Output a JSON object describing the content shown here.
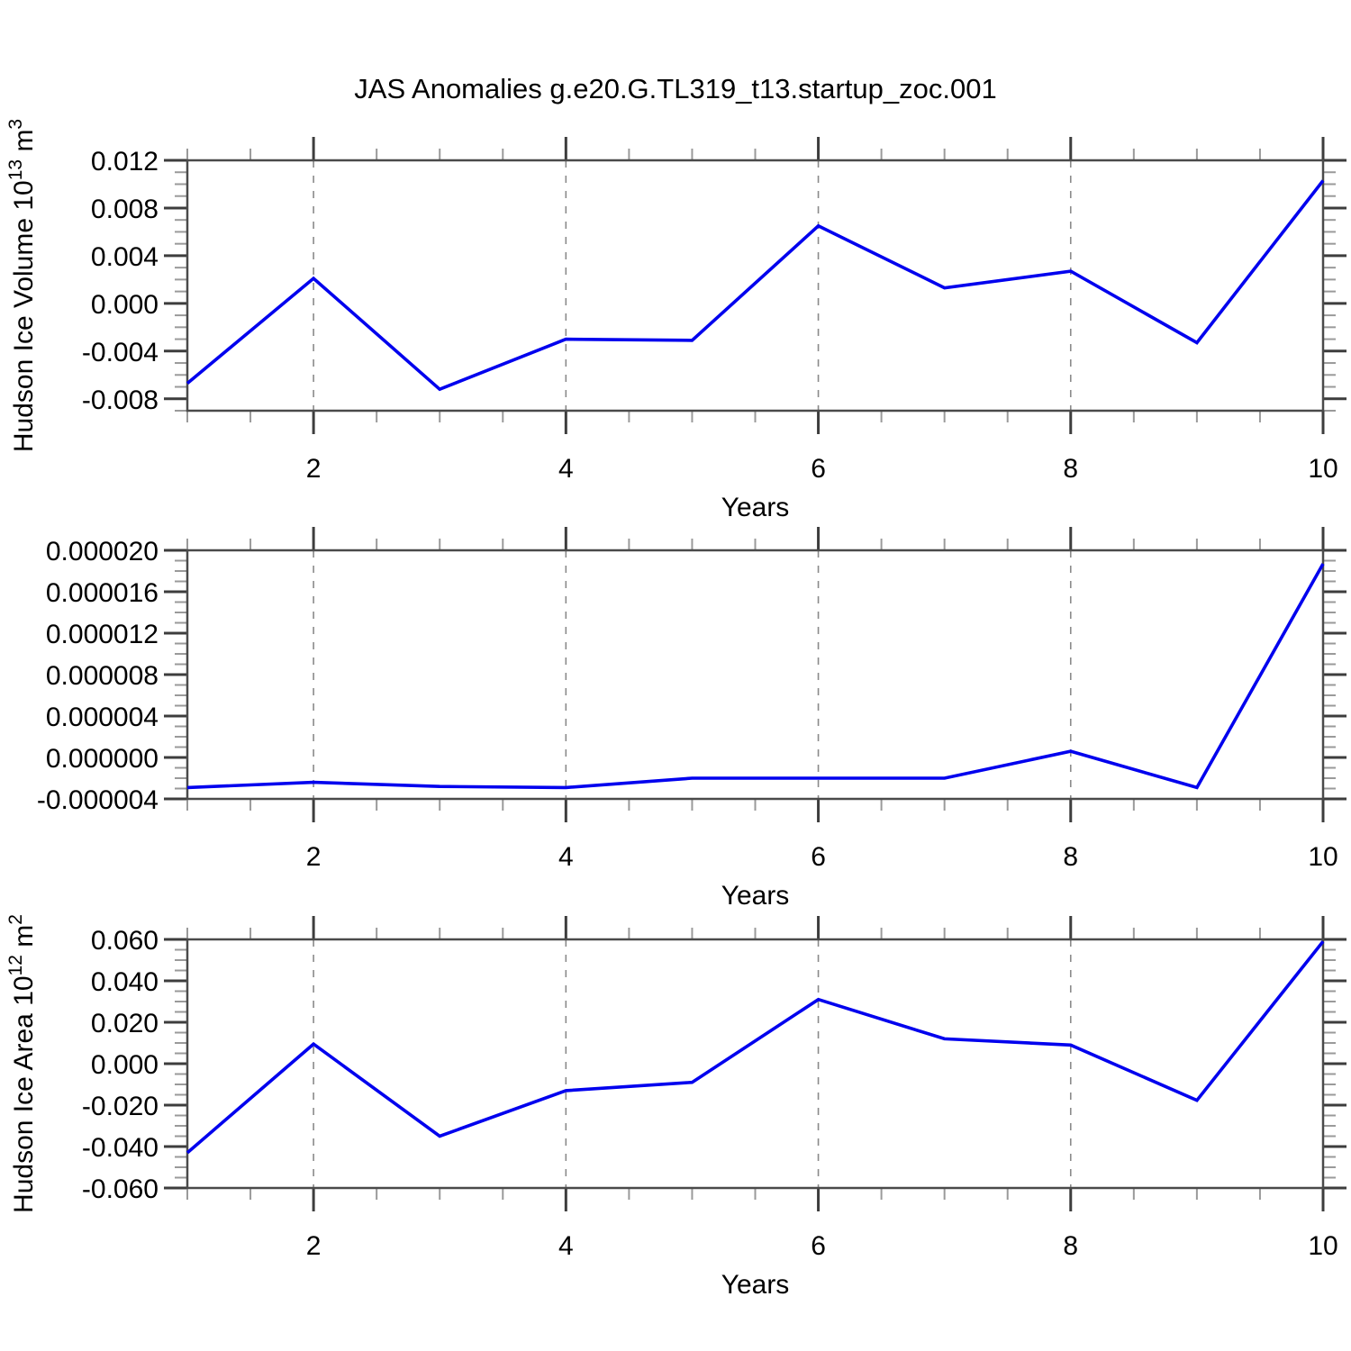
{
  "figure": {
    "title": "JAS Anomalies g.e20.G.TL319_t13.startup_zoc.001"
  },
  "style": {
    "line_color": "#0000ee",
    "frame_color": "#4a4a4a",
    "grid_color": "#8a8a8a",
    "tick_major_color": "#3d3d3d",
    "tick_minor_color": "#9a9a9a",
    "text_color": "#000000"
  },
  "chart_data": [
    {
      "type": "line",
      "panel": 1,
      "title": "JAS Anomalies g.e20.G.TL319_t13.startup_zoc.001",
      "xlabel": "Years",
      "ylabel": {
        "prefix": "Hudson Ice Volume 10",
        "exponent": "13",
        "unit": "m",
        "unit_exponent": "3"
      },
      "x": [
        1,
        2,
        3,
        4,
        5,
        6,
        7,
        8,
        9,
        10
      ],
      "values": [
        -0.0067,
        0.0021,
        -0.0072,
        -0.003,
        -0.0031,
        0.0065,
        0.0013,
        0.0027,
        -0.0033,
        0.0103
      ],
      "xlim": [
        1,
        10
      ],
      "ylim": [
        -0.009,
        0.012
      ],
      "yticks": [
        {
          "value": 0.012,
          "label": "0.012"
        },
        {
          "value": 0.008,
          "label": "0.008"
        },
        {
          "value": 0.004,
          "label": "0.004"
        },
        {
          "value": 0.0,
          "label": "0.000"
        },
        {
          "value": -0.004,
          "label": "-0.004"
        },
        {
          "value": -0.008,
          "label": "-0.008"
        }
      ],
      "xticks": [
        {
          "value": 2,
          "label": "2"
        },
        {
          "value": 4,
          "label": "4"
        },
        {
          "value": 6,
          "label": "6"
        },
        {
          "value": 8,
          "label": "8"
        },
        {
          "value": 10,
          "label": "10"
        }
      ],
      "y_minor_step": 0.001,
      "x_minor_step": 0.5,
      "gridlines_x": [
        2,
        4,
        6,
        8
      ],
      "grid_dashed": true,
      "legend": "none"
    },
    {
      "type": "line",
      "panel": 2,
      "title": "",
      "xlabel": "Years",
      "ylabel": null,
      "x": [
        1,
        2,
        3,
        4,
        5,
        6,
        7,
        8,
        9,
        10
      ],
      "values": [
        -2.9e-06,
        -2.4e-06,
        -2.8e-06,
        -2.9e-06,
        -2e-06,
        -2e-06,
        -2e-06,
        6e-07,
        -2.9e-06,
        1.87e-05
      ],
      "xlim": [
        1,
        10
      ],
      "ylim": [
        -4e-06,
        2e-05
      ],
      "yticks": [
        {
          "value": 2e-05,
          "label": "0.000020"
        },
        {
          "value": 1.6e-05,
          "label": "0.000016"
        },
        {
          "value": 1.2e-05,
          "label": "0.000012"
        },
        {
          "value": 8e-06,
          "label": "0.000008"
        },
        {
          "value": 4e-06,
          "label": "0.000004"
        },
        {
          "value": 0.0,
          "label": "0.000000"
        },
        {
          "value": -4e-06,
          "label": "-0.000004"
        }
      ],
      "xticks": [
        {
          "value": 2,
          "label": "2"
        },
        {
          "value": 4,
          "label": "4"
        },
        {
          "value": 6,
          "label": "6"
        },
        {
          "value": 8,
          "label": "8"
        },
        {
          "value": 10,
          "label": "10"
        }
      ],
      "y_minor_step": 1e-06,
      "x_minor_step": 0.5,
      "gridlines_x": [
        2,
        4,
        6,
        8
      ],
      "grid_dashed": true,
      "legend": "none"
    },
    {
      "type": "line",
      "panel": 3,
      "title": "",
      "xlabel": "Years",
      "ylabel": {
        "prefix": "Hudson Ice Area 10",
        "exponent": "12",
        "unit": "m",
        "unit_exponent": "2"
      },
      "x": [
        1,
        2,
        3,
        4,
        5,
        6,
        7,
        8,
        9,
        10
      ],
      "values": [
        -0.043,
        0.0095,
        -0.035,
        -0.013,
        -0.009,
        0.031,
        0.012,
        0.009,
        -0.0177,
        0.059
      ],
      "xlim": [
        1,
        10
      ],
      "ylim": [
        -0.06,
        0.06
      ],
      "yticks": [
        {
          "value": 0.06,
          "label": "0.060"
        },
        {
          "value": 0.04,
          "label": "0.040"
        },
        {
          "value": 0.02,
          "label": "0.020"
        },
        {
          "value": 0.0,
          "label": "0.000"
        },
        {
          "value": -0.02,
          "label": "-0.020"
        },
        {
          "value": -0.04,
          "label": "-0.040"
        },
        {
          "value": -0.06,
          "label": "-0.060"
        }
      ],
      "xticks": [
        {
          "value": 2,
          "label": "2"
        },
        {
          "value": 4,
          "label": "4"
        },
        {
          "value": 6,
          "label": "6"
        },
        {
          "value": 8,
          "label": "8"
        },
        {
          "value": 10,
          "label": "10"
        }
      ],
      "y_minor_step": 0.005,
      "x_minor_step": 0.5,
      "gridlines_x": [
        2,
        4,
        6,
        8
      ],
      "grid_dashed": true,
      "legend": "none"
    }
  ]
}
